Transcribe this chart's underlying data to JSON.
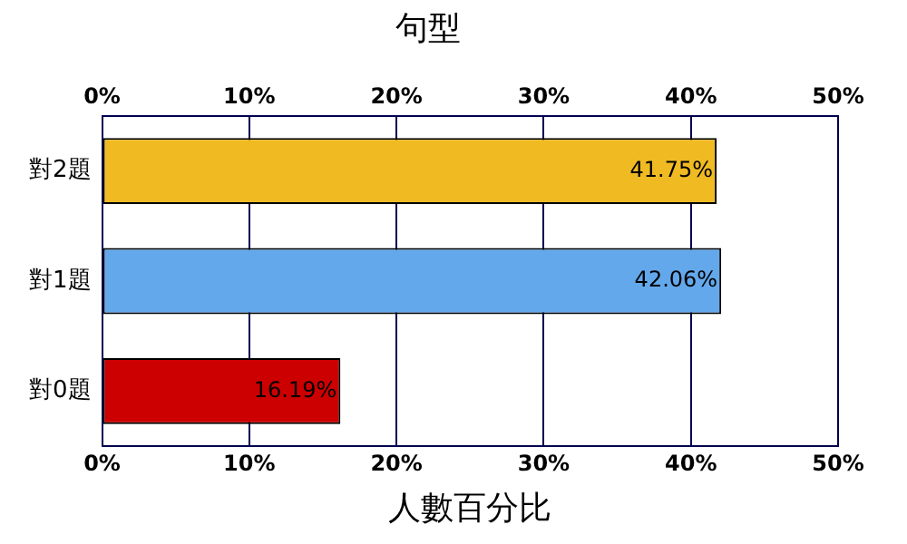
{
  "chart_data": {
    "type": "bar",
    "orientation": "horizontal",
    "title": "句型",
    "xlabel": "人數百分比",
    "categories": [
      "對2題",
      "對1題",
      "對0題"
    ],
    "values": [
      41.75,
      42.06,
      16.19
    ],
    "colors": [
      "#f0bb22",
      "#64a8ec",
      "#cc0000"
    ],
    "value_labels": [
      "41.75%",
      "42.06%",
      "16.19%"
    ],
    "xlim": [
      0,
      50
    ],
    "xticks": [
      {
        "value": 0,
        "label": "0%"
      },
      {
        "value": 10,
        "label": "10%"
      },
      {
        "value": 20,
        "label": "20%"
      },
      {
        "value": 30,
        "label": "30%"
      },
      {
        "value": 40,
        "label": "40%"
      },
      {
        "value": 50,
        "label": "50%"
      }
    ],
    "x2lim": [
      0,
      50
    ],
    "x2ticks": [
      {
        "value": 0,
        "label": "0%"
      },
      {
        "value": 10,
        "label": "10%"
      },
      {
        "value": 20,
        "label": "20%"
      },
      {
        "value": 30,
        "label": "30%"
      },
      {
        "value": 40,
        "label": "40%"
      },
      {
        "value": 50,
        "label": "50%"
      }
    ],
    "grid": "x",
    "legend": false
  }
}
